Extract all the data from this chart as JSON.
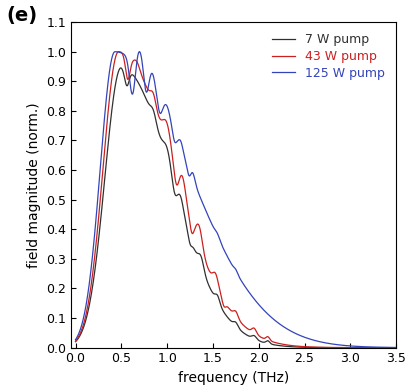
{
  "title": "",
  "xlabel": "frequency (THz)",
  "ylabel": "field magnitude (norm.)",
  "xlim": [
    -0.05,
    3.5
  ],
  "ylim": [
    0.0,
    1.1
  ],
  "xticks": [
    0.0,
    0.5,
    1.0,
    1.5,
    2.0,
    2.5,
    3.0,
    3.5
  ],
  "yticks": [
    0.0,
    0.1,
    0.2,
    0.3,
    0.4,
    0.5,
    0.6,
    0.7,
    0.8,
    0.9,
    1.0,
    1.1
  ],
  "legend_labels": [
    "7 W pump",
    "43 W pump",
    "125 W pump"
  ],
  "line_colors": [
    "#303030",
    "#cc2020",
    "#3344bb"
  ],
  "panel_label": "(e)",
  "background_color": "#ffffff"
}
